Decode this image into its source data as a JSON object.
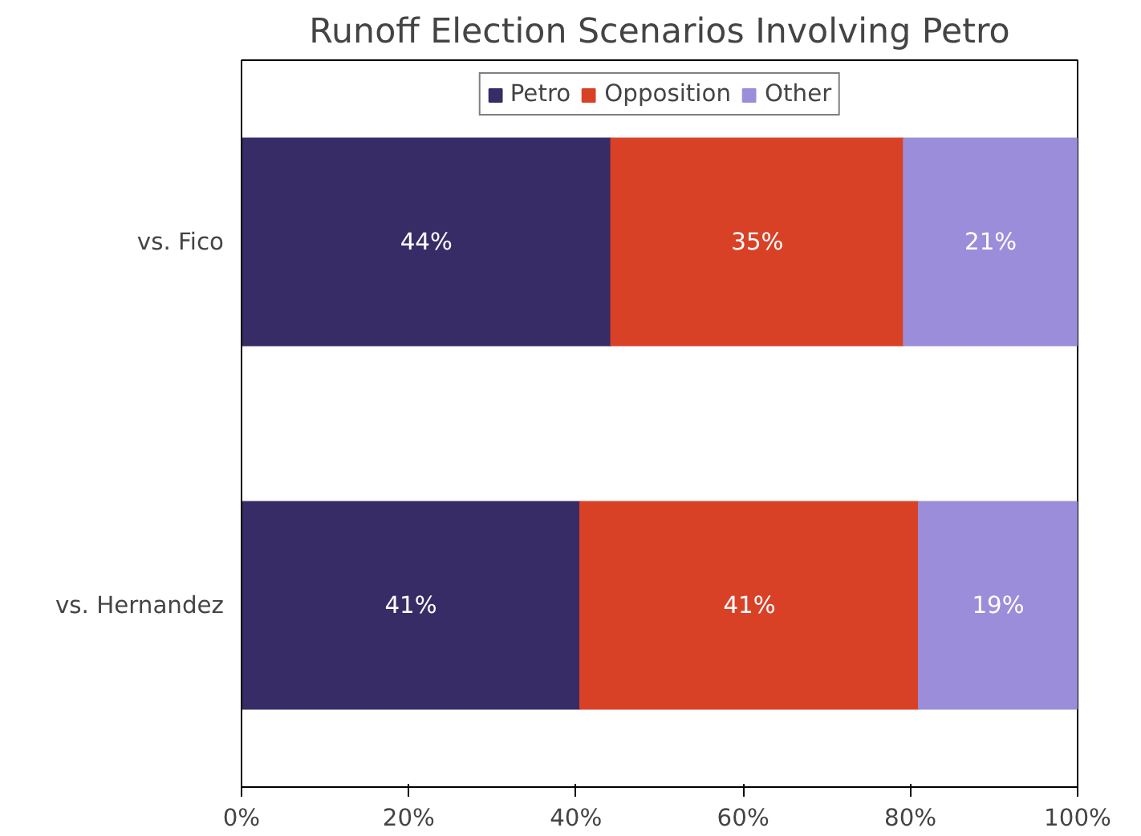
{
  "chart_data": {
    "type": "bar",
    "orientation": "horizontal",
    "stacked": true,
    "title": "Runoff Election Scenarios Involving Petro",
    "categories": [
      "vs. Fico",
      "vs. Hernandez"
    ],
    "series": [
      {
        "name": "Petro",
        "color": "#372c66",
        "values": [
          44.2,
          40.5
        ],
        "value_labels": [
          "44%",
          "41%"
        ]
      },
      {
        "name": "Opposition",
        "color": "#d94127",
        "values": [
          35,
          40.5
        ],
        "value_labels": [
          "35%",
          "41%"
        ]
      },
      {
        "name": "Other",
        "color": "#9b8dd9",
        "values": [
          20.8,
          19
        ],
        "value_labels": [
          "21%",
          "19%"
        ]
      }
    ],
    "xlim": [
      0,
      100
    ],
    "xticks": [
      {
        "value": 0,
        "label": "0%"
      },
      {
        "value": 20,
        "label": "20%"
      },
      {
        "value": 40,
        "label": "40%"
      },
      {
        "value": 60,
        "label": "60%"
      },
      {
        "value": 80,
        "label": "80%"
      },
      {
        "value": 100,
        "label": "100%"
      }
    ],
    "grid": false,
    "legend": "top"
  }
}
